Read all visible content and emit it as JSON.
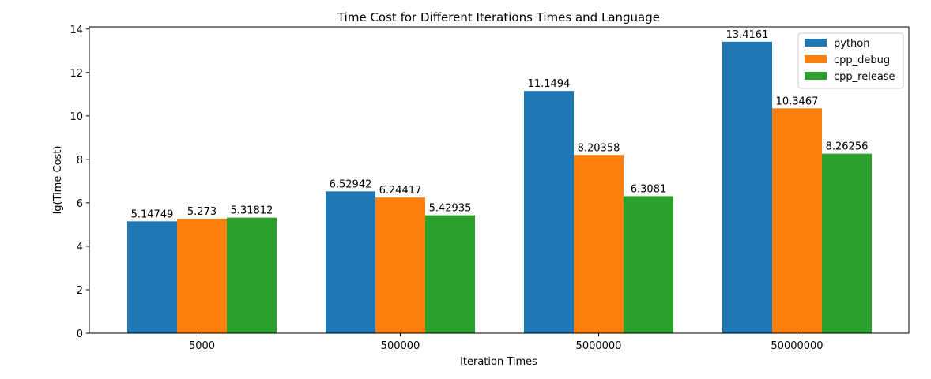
{
  "chart_data": {
    "type": "bar",
    "title": "Time Cost for Different Iterations Times and Language",
    "xlabel": "Iteration Times",
    "ylabel": "lg(Time Cost)",
    "categories": [
      "5000",
      "500000",
      "5000000",
      "50000000"
    ],
    "ylim": [
      0,
      14.1
    ],
    "yticks": [
      "0",
      "2",
      "4",
      "6",
      "8",
      "10",
      "12",
      "14"
    ],
    "grid": false,
    "legend_position": "top-right",
    "series": [
      {
        "name": "python",
        "color": "#1f77b4",
        "values": [
          5.14749,
          6.52942,
          11.1494,
          13.4161
        ],
        "labels": [
          "5.14749",
          "6.52942",
          "11.1494",
          "13.4161"
        ]
      },
      {
        "name": "cpp_debug",
        "color": "#ff7f0e",
        "values": [
          5.273,
          6.24417,
          8.20358,
          10.3467
        ],
        "labels": [
          "5.273",
          "6.24417",
          "8.20358",
          "10.3467"
        ]
      },
      {
        "name": "cpp_release",
        "color": "#2ca02c",
        "values": [
          5.31812,
          5.42935,
          6.3081,
          8.26256
        ],
        "labels": [
          "5.31812",
          "5.42935",
          "6.3081",
          "8.26256"
        ]
      }
    ]
  }
}
